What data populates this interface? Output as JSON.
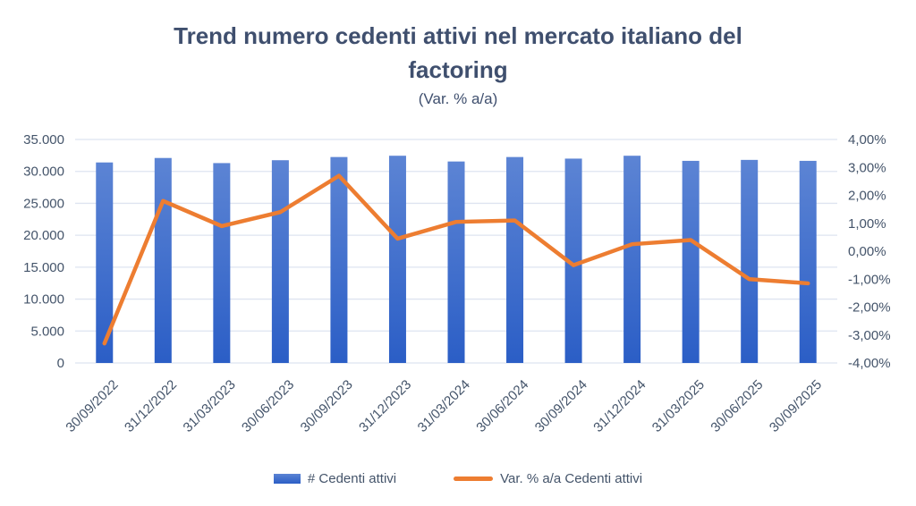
{
  "title": {
    "line1": "Trend numero cedenti attivi nel mercato italiano del",
    "line2": "factoring",
    "subtitle": "(Var. % a/a)"
  },
  "colors": {
    "background": "#FFFFFF",
    "title_text": "#3F4F6E",
    "axis_text": "#44546A",
    "gridline": "#DEE4F0",
    "bar_gradient_top": "#5C84D4",
    "bar_gradient_bottom": "#2B5EC6",
    "line": "#ED7D31"
  },
  "legend": [
    {
      "label": "# Cedenti attivi",
      "swatch": "bar-swatch"
    },
    {
      "label": "Var. % a/a Cedenti attivi",
      "swatch": "line-swatch"
    }
  ],
  "chart_data": {
    "type": "bar",
    "subtype": "combo-bar-line-dual-axis",
    "title": "Trend numero cedenti attivi nel mercato italiano del factoring",
    "subtitle": "(Var. % a/a)",
    "categories": [
      "30/09/2022",
      "31/12/2022",
      "31/03/2023",
      "30/06/2023",
      "30/09/2023",
      "31/12/2023",
      "31/03/2024",
      "30/06/2024",
      "30/09/2024",
      "31/12/2024",
      "31/03/2025",
      "30/06/2025",
      "30/09/2025"
    ],
    "series": [
      {
        "name": "# Cedenti attivi",
        "type": "bar",
        "axis": "primary",
        "values": [
          31400,
          32100,
          31300,
          31750,
          32250,
          32450,
          31550,
          32250,
          32000,
          32450,
          31650,
          31800,
          31650
        ]
      },
      {
        "name": "Var. % a/a Cedenti attivi",
        "type": "line",
        "axis": "secondary",
        "values_pct": [
          -3.3,
          1.8,
          0.9,
          1.4,
          2.7,
          0.45,
          1.05,
          1.1,
          -0.5,
          0.25,
          0.4,
          -1.0,
          -1.15
        ]
      }
    ],
    "primary_axis": {
      "min": 0,
      "max": 35000,
      "step": 5000,
      "tick_labels": [
        "0",
        "5.000",
        "10.000",
        "15.000",
        "20.000",
        "25.000",
        "30.000",
        "35.000"
      ]
    },
    "secondary_axis": {
      "min": -4,
      "max": 4,
      "step": 1,
      "tick_labels": [
        "-4,00%",
        "-3,00%",
        "-2,00%",
        "-1,00%",
        "0,00%",
        "1,00%",
        "2,00%",
        "3,00%",
        "4,00%"
      ]
    },
    "grid": "horizontal",
    "legend_position": "bottom"
  }
}
